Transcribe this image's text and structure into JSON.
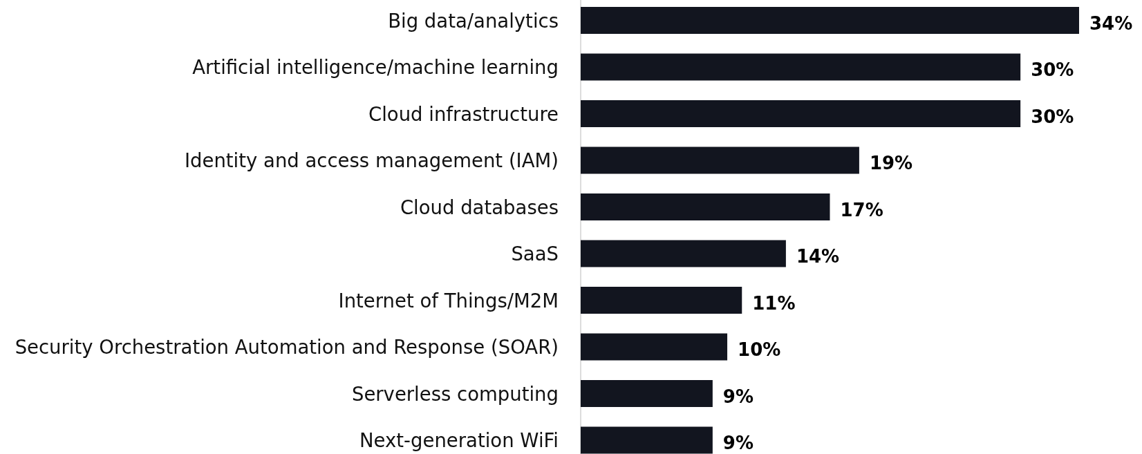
{
  "chart_data": {
    "type": "bar",
    "orientation": "horizontal",
    "data_labels": true,
    "categories": [
      "Big data/analytics",
      "Artificial intelligence/machine learning",
      "Cloud infrastructure",
      "Identity and access management (IAM)",
      "Cloud databases",
      "SaaS",
      "Internet of Things/M2M",
      "Security Orchestration Automation and Response (SOAR)",
      "Serverless computing",
      "Next-generation WiFi"
    ],
    "values": [
      34,
      30,
      30,
      19,
      17,
      14,
      11,
      10,
      9,
      9
    ],
    "value_labels": [
      "34%",
      "30%",
      "30%",
      "19%",
      "17%",
      "14%",
      "11%",
      "10%",
      "9%",
      "9%"
    ],
    "color": "#12151f"
  }
}
